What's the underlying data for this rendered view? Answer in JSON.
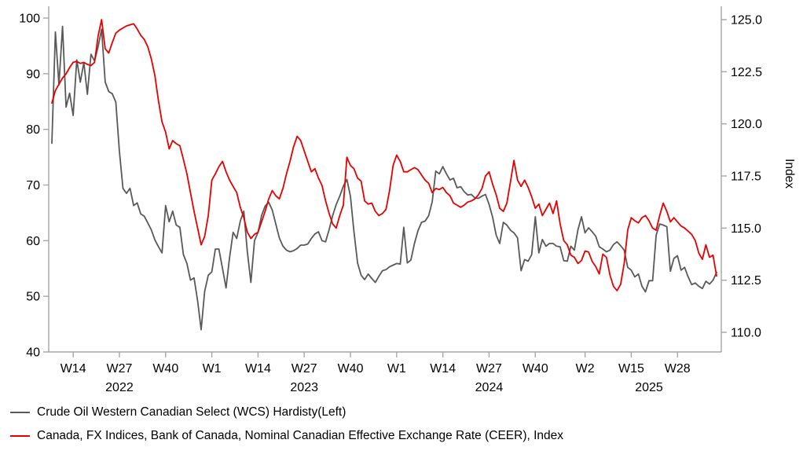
{
  "chart_data": {
    "type": "line",
    "title": "",
    "x_axis": {
      "unit": "ISO week",
      "start": "2022-W08",
      "end": "2025-W39",
      "tick_labels": [
        "W14",
        "W27",
        "W40",
        "W1",
        "W14",
        "W27",
        "W40",
        "W1",
        "W14",
        "W27",
        "W40",
        "W2",
        "W15",
        "W28"
      ],
      "tick_week_indices": [
        6,
        19,
        32,
        45,
        58,
        71,
        84,
        97,
        110,
        123,
        136,
        150,
        163,
        176
      ],
      "year_labels": [
        {
          "label": "2022",
          "index": 19
        },
        {
          "label": "2023",
          "index": 71
        },
        {
          "label": "2024",
          "index": 123
        },
        {
          "label": "2025",
          "index": 168
        }
      ]
    },
    "left_axis": {
      "label": "",
      "ticks": [
        "100",
        "90",
        "80",
        "70",
        "60",
        "50",
        "40"
      ],
      "range": [
        40,
        100
      ]
    },
    "right_axis": {
      "label": "Index",
      "ticks": [
        "125.0",
        "122.5",
        "120.0",
        "117.5",
        "115.0",
        "112.5",
        "110.0"
      ],
      "range": [
        110,
        125
      ]
    },
    "grid": false,
    "legend_position": "bottom-left",
    "axis_color": "#a6a6a6",
    "text_color": "#000000",
    "series": [
      {
        "name": "Crude Oil Western Canadian Select (WCS) Hardisty(Left)",
        "axis": "left",
        "color": "#595959",
        "values": [
          77.5,
          97.5,
          88,
          98.5,
          84,
          86.5,
          82.5,
          92.5,
          88.5,
          92,
          86.3,
          93.5,
          92.3,
          94.8,
          98,
          88.5,
          86.8,
          86.4,
          84.9,
          76,
          69.4,
          68.5,
          69.4,
          66.3,
          66.8,
          64.8,
          64.4,
          63.2,
          61.9,
          60.1,
          58.9,
          57.8,
          66.3,
          63.4,
          65.3,
          62.8,
          62.4,
          57.5,
          55.9,
          52.9,
          53.3,
          49.2,
          44,
          50.9,
          53.8,
          54.4,
          58.5,
          58.5,
          55,
          51.5,
          57,
          61.5,
          60.4,
          63.5,
          65.3,
          58,
          52.5,
          60,
          61.5,
          64.5,
          66.2,
          66.9,
          65.5,
          63,
          60.5,
          59,
          58.3,
          58,
          58.2,
          58.6,
          59.2,
          59.2,
          59.4,
          60.4,
          61.2,
          61.6,
          60,
          59.8,
          62,
          64.5,
          66.5,
          68,
          69.8,
          71,
          68,
          61.6,
          56,
          53.8,
          53.0,
          54.0,
          53.2,
          52.5,
          53.6,
          54.6,
          54.8,
          55.3,
          55.6,
          55.9,
          55.8,
          62.4,
          56,
          56.5,
          59.5,
          61.8,
          63.3,
          63.5,
          64.5,
          67,
          72.5,
          72,
          73.3,
          72,
          70.9,
          71.2,
          69.5,
          69.7,
          68.8,
          68.2,
          68.3,
          67.7,
          67.6,
          68,
          68.3,
          66.5,
          64.2,
          61,
          59.5,
          63.3,
          62.8,
          61.9,
          61.4,
          60.5,
          54.6,
          56.6,
          56.3,
          57.5,
          64.3,
          57.8,
          60.2,
          59,
          59.5,
          59.5,
          59,
          58.9,
          56.4,
          56.3,
          59,
          58.3,
          62,
          64.3,
          61.4,
          62.3,
          61.6,
          60.8,
          58.9,
          58.5,
          58,
          58.3,
          59.3,
          59.8,
          59.1,
          58.3,
          55.2,
          54.7,
          53.5,
          54,
          51.8,
          50.8,
          52.8,
          52.8,
          61,
          63,
          62.8,
          62.5,
          54.5,
          56.8,
          57.3,
          54.7,
          55.2,
          53.5,
          52.1,
          52.4,
          51.8,
          51.4,
          52.7,
          52.2,
          52.9,
          54.3
        ]
      },
      {
        "name": "Canada, FX Indices, Bank of Canada, Nominal Canadian Effective Exchange Rate (CEER), Index",
        "axis": "right",
        "color": "#e60000",
        "values": [
          121.0,
          121.6,
          121.9,
          122.2,
          122.4,
          122.7,
          122.95,
          123.0,
          122.9,
          122.95,
          122.85,
          122.8,
          122.95,
          124.2,
          125.0,
          123.6,
          123.4,
          123.9,
          124.35,
          124.5,
          124.6,
          124.7,
          124.75,
          124.8,
          124.55,
          124.25,
          124.05,
          123.7,
          123.1,
          122.3,
          121.1,
          120.1,
          119.6,
          118.8,
          119.2,
          119.05,
          118.95,
          118.3,
          117.6,
          116.7,
          115.8,
          115.0,
          114.2,
          114.6,
          115.6,
          117.3,
          117.6,
          117.95,
          118.2,
          117.7,
          117.3,
          117.0,
          116.7,
          116.0,
          115.5,
          114.8,
          114.5,
          114.7,
          114.8,
          115.3,
          115.8,
          116.4,
          116.8,
          116.55,
          116.4,
          116.9,
          117.6,
          118.2,
          118.9,
          119.4,
          119.2,
          118.7,
          118.2,
          117.7,
          117.85,
          117.4,
          117.05,
          116.3,
          115.7,
          115.2,
          115.0,
          115.6,
          116.1,
          118.4,
          118.0,
          117.85,
          117.4,
          117.25,
          116.3,
          116.15,
          116.2,
          115.8,
          115.6,
          115.7,
          115.9,
          116.8,
          118.0,
          118.5,
          118.2,
          117.7,
          117.7,
          117.8,
          117.9,
          117.8,
          117.55,
          117.3,
          117.15,
          116.7,
          116.9,
          116.85,
          116.95,
          116.7,
          116.55,
          116.2,
          116.1,
          116.0,
          116.1,
          116.25,
          116.3,
          116.4,
          116.6,
          116.9,
          117.5,
          117.7,
          117.1,
          116.6,
          115.95,
          115.8,
          116.2,
          117.2,
          118.25,
          117.3,
          117.0,
          117.3,
          116.95,
          116.5,
          115.95,
          116.15,
          115.6,
          115.9,
          116.2,
          115.7,
          116.3,
          115.2,
          114.4,
          114.2,
          113.7,
          113.6,
          113.3,
          113.45,
          113.9,
          113.85,
          113.4,
          113.15,
          112.8,
          113.75,
          113.6,
          112.75,
          112.2,
          112.0,
          112.3,
          113.3,
          114.9,
          115.5,
          115.35,
          115.25,
          115.5,
          115.6,
          115.35,
          115.0,
          114.9,
          115.6,
          116.2,
          115.8,
          115.3,
          115.5,
          115.3,
          115.1,
          115.0,
          114.85,
          114.7,
          114.4,
          113.8,
          113.5,
          114.2,
          113.6,
          113.7,
          112.7
        ]
      }
    ]
  },
  "legend": {
    "items": [
      {
        "series": 0
      },
      {
        "series": 1
      }
    ]
  }
}
